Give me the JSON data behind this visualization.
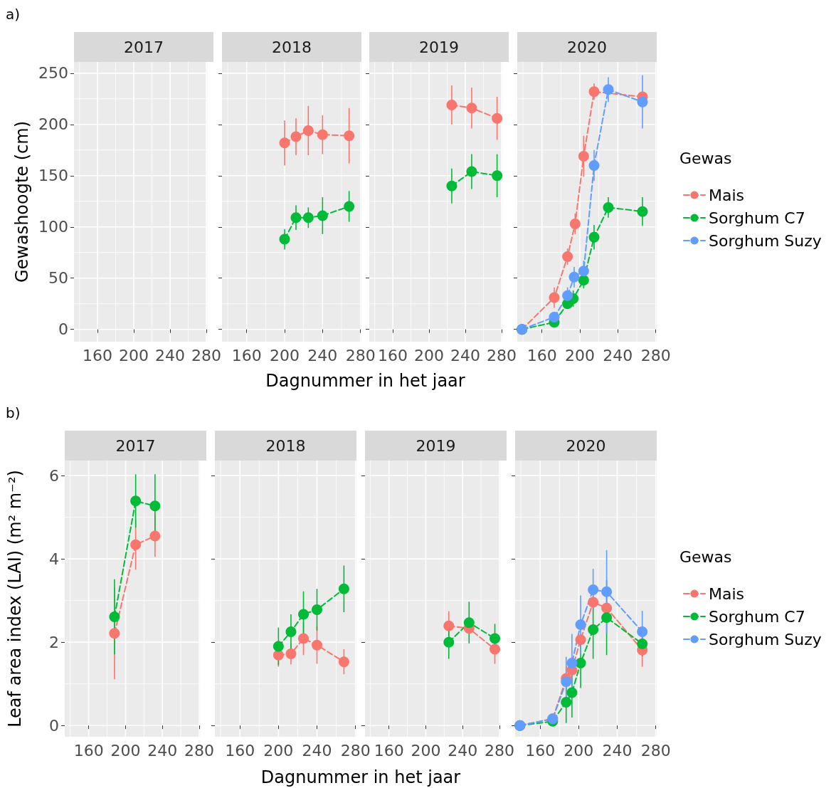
{
  "chart_data": [
    {
      "type": "line",
      "title": "2017",
      "ylabel": "Gewashoogte (cm)",
      "annotations": [
        "a)"
      ],
      "xlim": [
        134,
        281
      ],
      "xticks": [
        160,
        200,
        240,
        280
      ],
      "ylim": [
        -12,
        261
      ],
      "yticks": [
        0,
        50,
        100,
        150,
        200,
        250
      ],
      "grid": true
    },
    {
      "type": "line",
      "title": "2018",
      "xlabel": "Dagnummer in het jaar",
      "xlim": [
        134,
        281
      ],
      "xticks": [
        160,
        200,
        240,
        280
      ],
      "ylim": [
        -12,
        261
      ],
      "yticks": [
        0,
        50,
        100,
        150,
        200,
        250
      ],
      "grid": true,
      "marker": "circle",
      "line_style": "dashed",
      "tick_labels": "x",
      "series": [
        {
          "color": "#f8766d",
          "x": [
            200,
            212,
            225,
            240,
            268
          ],
          "values": [
            182,
            188,
            194,
            190,
            189
          ],
          "errors": [
            22,
            18,
            24,
            19,
            27
          ]
        },
        {
          "color": "#00ba38",
          "x": [
            200,
            212,
            225,
            240,
            268
          ],
          "values": [
            88,
            109,
            109,
            111,
            120
          ],
          "errors": [
            10,
            12,
            10,
            18,
            15
          ]
        }
      ]
    },
    {
      "type": "line",
      "title": "2019",
      "xlim": [
        134,
        281
      ],
      "xticks": [
        160,
        200,
        240,
        280
      ],
      "ylim": [
        -12,
        261
      ],
      "yticks": [
        0,
        50,
        100,
        150,
        200,
        250
      ],
      "grid": true,
      "marker": "circle",
      "line_style": "dashed",
      "tick_labels": "x",
      "series": [
        {
          "color": "#f8766d",
          "x": [
            225,
            247,
            275
          ],
          "values": [
            219,
            216,
            206
          ],
          "errors": [
            19,
            20,
            21
          ]
        },
        {
          "color": "#00ba38",
          "x": [
            225,
            247,
            275
          ],
          "values": [
            140,
            154,
            150
          ],
          "errors": [
            17,
            17,
            21
          ]
        }
      ]
    },
    {
      "type": "line",
      "title": "2020",
      "legend_title": "Gewas",
      "legend": "right",
      "xlim": [
        134,
        281
      ],
      "xticks": [
        160,
        200,
        240,
        280
      ],
      "ylim": [
        -12,
        261
      ],
      "yticks": [
        0,
        50,
        100,
        150,
        200,
        250
      ],
      "grid": true,
      "marker": "circle",
      "line_style": "dashed",
      "tick_labels": "x",
      "series": [
        {
          "name": "Mais",
          "color": "#f8766d",
          "x": [
            139,
            173,
            187,
            195,
            204,
            215,
            266
          ],
          "values": [
            0,
            31,
            71,
            103,
            169,
            232,
            227
          ],
          "errors": [
            0,
            10,
            8,
            10,
            20,
            8,
            null
          ]
        },
        {
          "name": "Sorghum C7",
          "color": "#00ba38",
          "x": [
            139,
            173,
            187,
            193,
            204,
            215,
            230,
            266
          ],
          "values": [
            0,
            7,
            25,
            30,
            48,
            90,
            119,
            115
          ],
          "errors": [
            0,
            5,
            5,
            8,
            8,
            12,
            10,
            14
          ]
        },
        {
          "name": "Sorghum Suzy",
          "color": "#619cff",
          "x": [
            139,
            173,
            187,
            194,
            204,
            215,
            230,
            266
          ],
          "values": [
            0,
            12,
            33,
            51,
            57,
            160,
            234,
            222
          ],
          "errors": [
            0,
            5,
            8,
            10,
            10,
            15,
            12,
            26
          ]
        }
      ]
    },
    {
      "type": "line",
      "title": "2017",
      "ylabel": "Leaf area index (LAI) (m² m⁻²)",
      "annotations": [
        "b)"
      ],
      "xlim": [
        134,
        281
      ],
      "xticks": [
        160,
        200,
        240,
        280
      ],
      "ylim": [
        -0.27,
        6.36
      ],
      "yticks": [
        0,
        2,
        4,
        6
      ],
      "grid": true,
      "marker": "circle",
      "line_style": "dashed",
      "series": [
        {
          "color": "#f8766d",
          "x": [
            188,
            211,
            232
          ],
          "values": [
            2.21,
            4.34,
            4.55
          ],
          "errors": [
            1.1,
            0.6,
            0.5
          ]
        },
        {
          "color": "#00ba38",
          "x": [
            188,
            211,
            232
          ],
          "values": [
            2.61,
            5.39,
            5.27
          ],
          "errors": [
            0.9,
            0.64,
            0.76
          ]
        }
      ]
    },
    {
      "type": "line",
      "title": "2018",
      "xlabel": "Dagnummer in het jaar",
      "xlim": [
        134,
        281
      ],
      "xticks": [
        160,
        200,
        240,
        280
      ],
      "ylim": [
        -0.27,
        6.36
      ],
      "yticks": [
        0,
        2,
        4,
        6
      ],
      "grid": true,
      "marker": "circle",
      "line_style": "dashed",
      "tick_labels": "x",
      "series": [
        {
          "color": "#f8766d",
          "x": [
            200,
            213,
            226,
            240,
            268
          ],
          "values": [
            1.69,
            1.72,
            2.09,
            1.93,
            1.53
          ],
          "errors": [
            0.28,
            0.25,
            0.4,
            0.45,
            0.3
          ]
        },
        {
          "color": "#00ba38",
          "x": [
            200,
            213,
            226,
            240,
            268
          ],
          "values": [
            1.9,
            2.25,
            2.67,
            2.78,
            3.28
          ],
          "errors": [
            0.45,
            0.42,
            0.55,
            0.5,
            0.56
          ]
        }
      ]
    },
    {
      "type": "line",
      "title": "2019",
      "xlim": [
        134,
        281
      ],
      "xticks": [
        160,
        200,
        240,
        280
      ],
      "ylim": [
        -0.27,
        6.36
      ],
      "yticks": [
        0,
        2,
        4,
        6
      ],
      "grid": true,
      "marker": "circle",
      "line_style": "dashed",
      "tick_labels": "x",
      "series": [
        {
          "color": "#f8766d",
          "x": [
            225,
            247,
            275
          ],
          "values": [
            2.39,
            2.33,
            1.83
          ],
          "errors": [
            0.35,
            null,
            0.35
          ]
        },
        {
          "color": "#00ba38",
          "x": [
            225,
            247,
            275
          ],
          "values": [
            2.0,
            2.47,
            2.09
          ],
          "errors": [
            0.4,
            0.5,
            0.35
          ]
        }
      ]
    },
    {
      "type": "line",
      "title": "2020",
      "legend_title": "Gewas",
      "legend": "right",
      "xlim": [
        134,
        281
      ],
      "xticks": [
        160,
        200,
        240,
        280
      ],
      "ylim": [
        -0.27,
        6.36
      ],
      "yticks": [
        0,
        2,
        4,
        6
      ],
      "grid": true,
      "marker": "circle",
      "line_style": "dashed",
      "tick_labels": "x",
      "series": [
        {
          "name": "Mais",
          "color": "#f8766d",
          "x": [
            139,
            173,
            187,
            193,
            202,
            215,
            229,
            266
          ],
          "values": [
            0,
            0.16,
            1.13,
            1.33,
            2.06,
            2.96,
            2.82,
            1.81
          ],
          "errors": [
            0,
            null,
            0.3,
            null,
            null,
            0.2,
            null,
            0.4
          ]
        },
        {
          "name": "Sorghum C7",
          "color": "#00ba38",
          "x": [
            139,
            173,
            187,
            193,
            202,
            215,
            229,
            266
          ],
          "values": [
            0,
            0.1,
            0.56,
            0.79,
            1.5,
            2.3,
            2.59,
            1.96
          ],
          "errors": [
            0,
            0.1,
            0.5,
            0.6,
            0.6,
            0.7,
            0.9,
            0.3
          ]
        },
        {
          "name": "Sorghum Suzy",
          "color": "#619cff",
          "x": [
            139,
            173,
            187,
            193,
            202,
            215,
            229,
            266
          ],
          "values": [
            0,
            0.16,
            1.05,
            1.5,
            2.42,
            3.26,
            3.21,
            2.25
          ],
          "errors": [
            0,
            null,
            0.6,
            0.7,
            0.7,
            0.5,
            1.0,
            0.5
          ]
        }
      ]
    }
  ]
}
